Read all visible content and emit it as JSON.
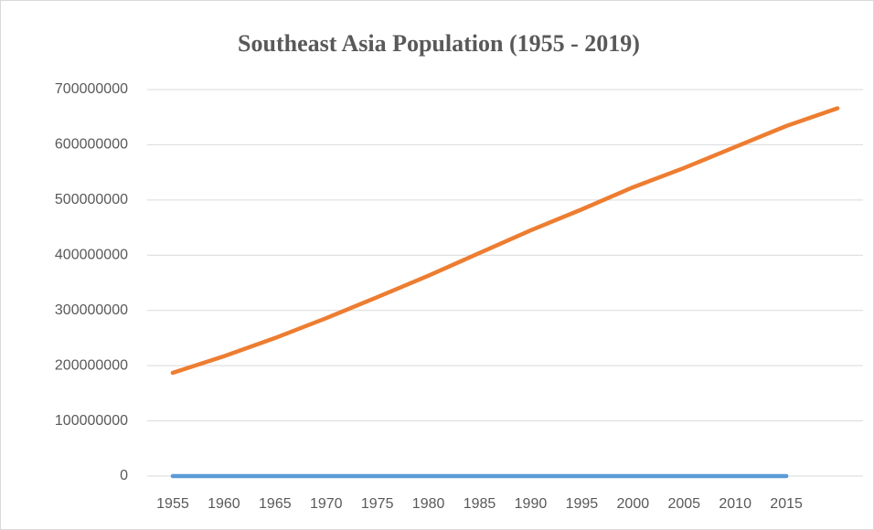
{
  "chart_data": {
    "type": "line",
    "title": "Southeast Asia Population (1955 - 2019)",
    "categories": [
      "1955",
      "1960",
      "1965",
      "1970",
      "1975",
      "1980",
      "1985",
      "1990",
      "1995",
      "2000",
      "2005",
      "2010",
      "2015",
      null
    ],
    "series": [
      {
        "color": "#5b9bd5",
        "values": [
          0,
          0,
          0,
          0,
          0,
          0,
          0,
          0,
          0,
          0,
          0,
          0,
          0,
          null
        ]
      },
      {
        "color": "#ed7d31",
        "values": [
          187000000,
          217000000,
          250000000,
          286000000,
          324000000,
          363000000,
          404000000,
          445000000,
          483000000,
          523000000,
          558000000,
          596000000,
          634000000,
          666000000
        ]
      }
    ],
    "ylim": [
      0,
      700000000
    ],
    "yticks": [
      0,
      100000000,
      200000000,
      300000000,
      400000000,
      500000000,
      600000000,
      700000000
    ],
    "grid": true
  }
}
